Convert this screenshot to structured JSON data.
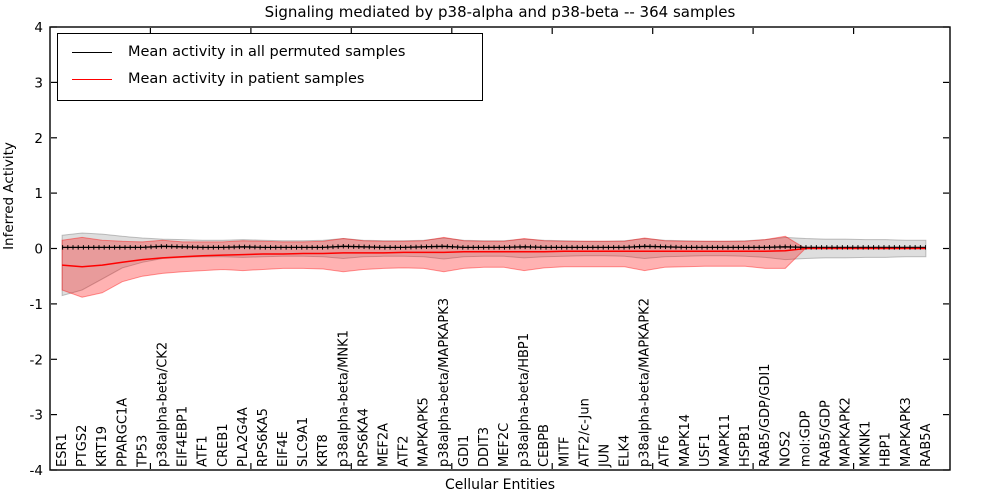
{
  "figure": {
    "title": "Signaling mediated by p38-alpha and p38-beta -- 364 samples",
    "xlabel": "Cellular Entities",
    "ylabel": "Inferred Activity"
  },
  "legend": {
    "entries": [
      {
        "label": "Mean activity in all permuted samples",
        "color": "#000000"
      },
      {
        "label": "Mean activity in patient samples",
        "color": "#ff0000"
      }
    ]
  },
  "chart_data": {
    "type": "line",
    "title": "Signaling mediated by p38-alpha and p38-beta -- 364 samples",
    "xlabel": "Cellular Entities",
    "ylabel": "Inferred Activity",
    "ylim": [
      -4,
      4
    ],
    "yticks": [
      4,
      3,
      2,
      1,
      0,
      -1,
      -2,
      -3,
      -4
    ],
    "x_major_tick_every": 5,
    "grid": false,
    "legend_position": "upper left",
    "categories": [
      "ESR1",
      "PTGS2",
      "KRT19",
      "PPARGC1A",
      "TP53",
      "p38alpha-beta/CK2",
      "EIF4EBP1",
      "ATF1",
      "CREB1",
      "PLA2G4A",
      "RPS6KA5",
      "EIF4E",
      "SLC9A1",
      "KRT8",
      "p38alpha-beta/MNK1",
      "RPS6KA4",
      "MEF2A",
      "ATF2",
      "MAPKAPK5",
      "p38alpha-beta/MAPKAPK3",
      "GDI1",
      "DDIT3",
      "MEF2C",
      "p38alpha-beta/HBP1",
      "CEBPB",
      "MITF",
      "ATF2/c-Jun",
      "JUN",
      "ELK4",
      "p38alpha-beta/MAPKAPK2",
      "ATF6",
      "MAPK14",
      "USF1",
      "MAPK11",
      "HSPB1",
      "RAB5/GDP/GDI1",
      "NOS2",
      "mol:GDP",
      "RAB5/GDP",
      "MAPKAPK2",
      "MKNK1",
      "HBP1",
      "MAPKAPK3",
      "RAB5A"
    ],
    "series": [
      {
        "name": "Mean activity in all permuted samples",
        "color": "#000000",
        "values": [
          0.02,
          0.02,
          0.02,
          0.02,
          0.02,
          0.04,
          0.03,
          0.02,
          0.02,
          0.03,
          0.02,
          0.02,
          0.02,
          0.02,
          0.04,
          0.03,
          0.02,
          0.02,
          0.03,
          0.04,
          0.02,
          0.02,
          0.02,
          0.03,
          0.02,
          0.02,
          0.02,
          0.02,
          0.02,
          0.04,
          0.03,
          0.02,
          0.02,
          0.02,
          0.02,
          0.02,
          0.03,
          0.02,
          0.02,
          0.02,
          0.02,
          0.02,
          0.02,
          0.02
        ]
      },
      {
        "name": "Mean activity in patient samples",
        "color": "#ff0000",
        "values": [
          -0.3,
          -0.33,
          -0.3,
          -0.25,
          -0.2,
          -0.17,
          -0.15,
          -0.13,
          -0.12,
          -0.11,
          -0.1,
          -0.1,
          -0.09,
          -0.09,
          -0.08,
          -0.08,
          -0.08,
          -0.07,
          -0.07,
          -0.07,
          -0.06,
          -0.06,
          -0.06,
          -0.06,
          -0.06,
          -0.05,
          -0.05,
          -0.05,
          -0.05,
          -0.05,
          -0.05,
          -0.05,
          -0.05,
          -0.05,
          -0.05,
          -0.05,
          -0.04,
          0,
          0,
          0,
          0,
          0,
          0,
          0
        ]
      }
    ],
    "bands": [
      {
        "id": "permuted-band",
        "name": "Permuted samples range",
        "fill": "rgba(0,0,0,0.13)",
        "edge": "rgba(0,0,0,0.22)",
        "upper": [
          0.24,
          0.28,
          0.26,
          0.22,
          0.19,
          0.17,
          0.16,
          0.15,
          0.15,
          0.16,
          0.15,
          0.14,
          0.14,
          0.15,
          0.18,
          0.15,
          0.14,
          0.14,
          0.15,
          0.19,
          0.15,
          0.14,
          0.14,
          0.17,
          0.15,
          0.14,
          0.13,
          0.13,
          0.14,
          0.18,
          0.15,
          0.14,
          0.13,
          0.13,
          0.14,
          0.16,
          0.2,
          0.18,
          0.17,
          0.17,
          0.16,
          0.16,
          0.15,
          0.15
        ],
        "lower": [
          -0.85,
          -0.75,
          -0.55,
          -0.35,
          -0.25,
          -0.18,
          -0.16,
          -0.15,
          -0.15,
          -0.16,
          -0.15,
          -0.14,
          -0.14,
          -0.15,
          -0.18,
          -0.15,
          -0.14,
          -0.14,
          -0.15,
          -0.19,
          -0.15,
          -0.14,
          -0.14,
          -0.17,
          -0.15,
          -0.14,
          -0.13,
          -0.13,
          -0.14,
          -0.18,
          -0.15,
          -0.14,
          -0.13,
          -0.13,
          -0.14,
          -0.16,
          -0.2,
          -0.18,
          -0.17,
          -0.17,
          -0.16,
          -0.16,
          -0.15,
          -0.15
        ]
      },
      {
        "id": "patient-band",
        "name": "Patient samples range",
        "fill": "rgba(255,0,0,0.30)",
        "edge": "rgba(255,0,0,0.40)",
        "upper": [
          0.15,
          0.2,
          0.15,
          0.13,
          0.12,
          0.15,
          0.12,
          0.12,
          0.12,
          0.14,
          0.13,
          0.12,
          0.12,
          0.13,
          0.18,
          0.14,
          0.13,
          0.13,
          0.14,
          0.2,
          0.14,
          0.13,
          0.13,
          0.18,
          0.14,
          0.13,
          0.13,
          0.13,
          0.13,
          0.19,
          0.14,
          0.13,
          0.13,
          0.13,
          0.13,
          0.16,
          0.22,
          0,
          0,
          0,
          0,
          0,
          0,
          0
        ],
        "lower": [
          -0.75,
          -0.88,
          -0.8,
          -0.6,
          -0.5,
          -0.45,
          -0.42,
          -0.4,
          -0.38,
          -0.4,
          -0.38,
          -0.36,
          -0.36,
          -0.37,
          -0.42,
          -0.38,
          -0.36,
          -0.35,
          -0.36,
          -0.42,
          -0.36,
          -0.34,
          -0.34,
          -0.4,
          -0.35,
          -0.33,
          -0.33,
          -0.33,
          -0.33,
          -0.4,
          -0.34,
          -0.33,
          -0.32,
          -0.32,
          -0.32,
          -0.36,
          -0.36,
          0,
          0,
          0,
          0,
          0,
          0,
          0
        ]
      }
    ]
  }
}
